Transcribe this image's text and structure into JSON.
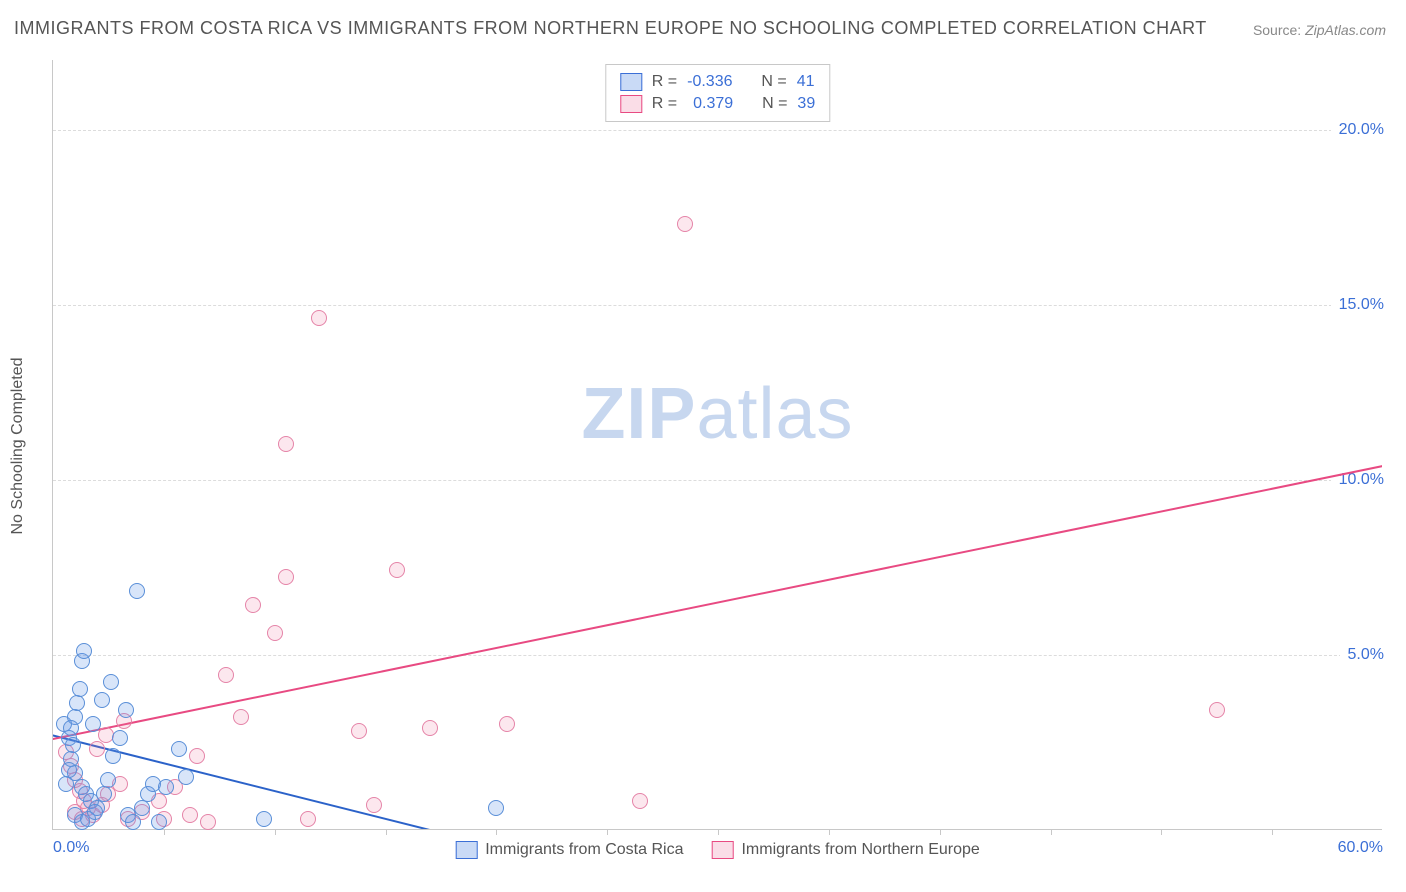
{
  "title": "IMMIGRANTS FROM COSTA RICA VS IMMIGRANTS FROM NORTHERN EUROPE NO SCHOOLING COMPLETED CORRELATION CHART",
  "source_label": "Source:",
  "source_value": "ZipAtlas.com",
  "watermark_a": "ZIP",
  "watermark_b": "atlas",
  "y_axis_title": "No Schooling Completed",
  "chart": {
    "type": "scatter",
    "xlim": [
      0,
      60
    ],
    "ylim": [
      0,
      22
    ],
    "x_ticks": [
      0,
      60
    ],
    "x_tick_labels": [
      "0.0%",
      "60.0%"
    ],
    "x_minor_ticks": [
      5,
      10,
      15,
      20,
      25,
      30,
      35,
      40,
      45,
      50,
      55
    ],
    "y_tick_values": [
      5,
      10,
      15,
      20
    ],
    "y_tick_labels": [
      "5.0%",
      "10.0%",
      "15.0%",
      "20.0%"
    ],
    "grid_color": "#dcdcdc",
    "axis_color": "#c8c8c8",
    "background_color": "#ffffff",
    "tick_label_color": "#3b6fd6",
    "tick_label_fontsize": 16,
    "title_fontsize": 18,
    "title_color": "#555555",
    "axis_title_fontsize": 16,
    "point_radius": 8,
    "series": {
      "costa_rica": {
        "label": "Immigrants from Costa Rica",
        "fill_color": "rgba(99,150,230,0.25)",
        "stroke_color": "#5a8fd8",
        "R": "-0.336",
        "N": "41",
        "trend": {
          "x1": 0,
          "y1": 2.7,
          "x2": 17,
          "y2": 0.0,
          "color": "#2b62c9",
          "width": 2
        },
        "points": [
          [
            0.5,
            3.0
          ],
          [
            0.7,
            2.6
          ],
          [
            0.8,
            2.0
          ],
          [
            0.9,
            2.4
          ],
          [
            1.0,
            3.2
          ],
          [
            1.1,
            3.6
          ],
          [
            1.2,
            4.0
          ],
          [
            1.3,
            4.8
          ],
          [
            1.4,
            5.1
          ],
          [
            1.0,
            1.6
          ],
          [
            1.3,
            1.2
          ],
          [
            1.5,
            1.0
          ],
          [
            1.7,
            0.8
          ],
          [
            2.0,
            0.6
          ],
          [
            2.3,
            1.0
          ],
          [
            2.5,
            1.4
          ],
          [
            2.7,
            2.1
          ],
          [
            3.0,
            2.6
          ],
          [
            3.3,
            3.4
          ],
          [
            3.4,
            0.4
          ],
          [
            3.6,
            0.2
          ],
          [
            4.0,
            0.6
          ],
          [
            4.3,
            1.0
          ],
          [
            4.5,
            1.3
          ],
          [
            5.1,
            1.2
          ],
          [
            5.7,
            2.3
          ],
          [
            1.8,
            3.0
          ],
          [
            2.2,
            3.7
          ],
          [
            2.6,
            4.2
          ],
          [
            3.8,
            6.8
          ],
          [
            1.0,
            0.4
          ],
          [
            1.3,
            0.2
          ],
          [
            1.6,
            0.3
          ],
          [
            1.9,
            0.5
          ],
          [
            0.6,
            1.3
          ],
          [
            0.7,
            1.7
          ],
          [
            0.8,
            2.9
          ],
          [
            9.5,
            0.3
          ],
          [
            20.0,
            0.6
          ],
          [
            6.0,
            1.5
          ],
          [
            4.8,
            0.2
          ]
        ]
      },
      "northern_europe": {
        "label": "Immigrants from Northern Europe",
        "fill_color": "rgba(236,120,160,0.18)",
        "stroke_color": "#e584a8",
        "R": "0.379",
        "N": "39",
        "trend": {
          "x1": 0,
          "y1": 2.6,
          "x2": 60,
          "y2": 10.4,
          "color": "#e84a82",
          "width": 2
        },
        "points": [
          [
            0.6,
            2.2
          ],
          [
            0.8,
            1.8
          ],
          [
            1.0,
            1.4
          ],
          [
            1.2,
            1.1
          ],
          [
            1.4,
            0.8
          ],
          [
            1.6,
            0.6
          ],
          [
            1.8,
            0.4
          ],
          [
            2.2,
            0.7
          ],
          [
            2.5,
            1.0
          ],
          [
            3.0,
            1.3
          ],
          [
            3.4,
            0.3
          ],
          [
            4.0,
            0.5
          ],
          [
            4.8,
            0.8
          ],
          [
            5.5,
            1.2
          ],
          [
            6.2,
            0.4
          ],
          [
            7.0,
            0.2
          ],
          [
            7.8,
            4.4
          ],
          [
            8.5,
            3.2
          ],
          [
            9.0,
            6.4
          ],
          [
            10.0,
            5.6
          ],
          [
            10.5,
            7.2
          ],
          [
            10.5,
            11.0
          ],
          [
            12.0,
            14.6
          ],
          [
            13.8,
            2.8
          ],
          [
            14.5,
            0.7
          ],
          [
            15.5,
            7.4
          ],
          [
            17.0,
            2.9
          ],
          [
            20.5,
            3.0
          ],
          [
            26.5,
            0.8
          ],
          [
            28.5,
            17.3
          ],
          [
            52.5,
            3.4
          ],
          [
            2.0,
            2.3
          ],
          [
            2.4,
            2.7
          ],
          [
            3.2,
            3.1
          ],
          [
            1.0,
            0.5
          ],
          [
            1.3,
            0.3
          ],
          [
            5.0,
            0.3
          ],
          [
            6.5,
            2.1
          ],
          [
            11.5,
            0.3
          ]
        ]
      }
    }
  },
  "legend_top": {
    "r_label": "R =",
    "n_label": "N ="
  }
}
